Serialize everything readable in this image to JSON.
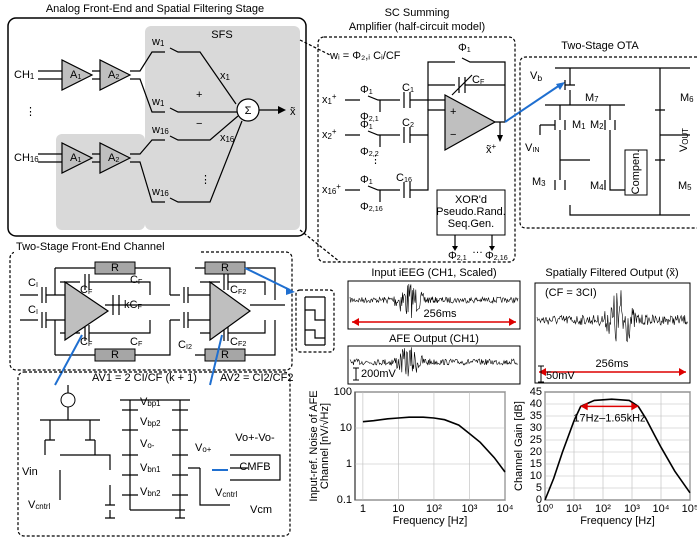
{
  "title": "Analog Front-End and Spatial Filtering Stage",
  "sfs": {
    "title": "SFS",
    "channels": [
      {
        "t": "CH",
        "sub": "1"
      },
      {
        "t": "CH",
        "sub": "16"
      }
    ],
    "amps": [
      {
        "t": "A",
        "sub": "1"
      },
      {
        "t": "A",
        "sub": "2"
      },
      {
        "t": "A",
        "sub": "1"
      },
      {
        "t": "A",
        "sub": "2"
      }
    ],
    "weights": [
      {
        "t": "w",
        "sub": "1"
      },
      {
        "t": "w",
        "sub": "1"
      },
      {
        "t": "w",
        "sub": "16"
      },
      {
        "t": "w",
        "sub": "16"
      }
    ],
    "inputs": [
      {
        "t": "x",
        "sub": "1"
      },
      {
        "t": "x",
        "sub": "16"
      }
    ],
    "sum": "Σ",
    "output": "x̃"
  },
  "sc_amp": {
    "title": [
      "SC Summing",
      "Amplifier (half-circuit model)"
    ],
    "formula": "wᵢ = Φ₂,ᵢ Cᵢ/CF",
    "phi1": [
      {
        "t": "Φ",
        "sub": "1"
      },
      {
        "t": "Φ",
        "sub": "1"
      },
      {
        "t": "Φ",
        "sub": "1"
      },
      {
        "t": "Φ",
        "sub": "1"
      }
    ],
    "cf": {
      "t": "C",
      "sub": "F"
    },
    "caps": [
      {
        "t": "C",
        "sub": "1"
      },
      {
        "t": "C",
        "sub": "2"
      },
      {
        "t": "C",
        "sub": "16"
      }
    ],
    "phi2": [
      {
        "t": "Φ",
        "sub": "2,1"
      },
      {
        "t": "Φ",
        "sub": "2,2"
      },
      {
        "t": "Φ",
        "sub": "2,16"
      }
    ],
    "inputs": [
      {
        "t": "x",
        "sub": "1",
        "sup": "+"
      },
      {
        "t": "x",
        "sub": "2",
        "sup": "+"
      },
      {
        "t": "x",
        "sub": "16",
        "sup": "+"
      }
    ],
    "output": {
      "t": "x̃",
      "sup": "+"
    },
    "prng": [
      "XOR'd",
      "Pseudo.Rand.",
      "Seq.Gen."
    ],
    "prng_out": [
      {
        "t": "Φ",
        "sub": "2,1"
      },
      {
        "t": "Φ",
        "sub": "2,16"
      }
    ]
  },
  "ota": {
    "title": "Two-Stage OTA",
    "vb": {
      "t": "V",
      "sub": "b"
    },
    "transistors": [
      {
        "t": "M",
        "sub": "7"
      },
      {
        "t": "M",
        "sub": "6"
      },
      {
        "t": "M",
        "sub": "1"
      },
      {
        "t": "M",
        "sub": "2"
      },
      {
        "t": "M",
        "sub": "3"
      },
      {
        "t": "M",
        "sub": "4"
      },
      {
        "t": "M",
        "sub": "5"
      }
    ],
    "vout": {
      "t": "V",
      "sub": "OUT"
    },
    "vin": {
      "t": "V",
      "sub": "IN"
    },
    "compen": "Compen."
  },
  "front_end": {
    "title": "Two-Stage Front-End Channel",
    "resistors": [
      "R",
      "R",
      "R",
      "R"
    ],
    "ci": [
      {
        "t": "C",
        "sub": "I"
      },
      {
        "t": "C",
        "sub": "I"
      }
    ],
    "cf": [
      {
        "t": "C",
        "sub": "F"
      },
      {
        "t": "C",
        "sub": "F"
      },
      {
        "t": "C",
        "sub": "F"
      },
      {
        "t": "C",
        "sub": "F"
      }
    ],
    "kcf": {
      "t": "kC",
      "sub": "F"
    },
    "ci2": [
      {
        "t": "C",
        "sub": "I2"
      },
      {
        "t": "C",
        "sub": "I2"
      }
    ],
    "cf2": [
      {
        "t": "C",
        "sub": "F2"
      },
      {
        "t": "C",
        "sub": "F2"
      }
    ],
    "av1": "AV1 = 2 CI/CF (k + 1)",
    "av2": "AV2 = CI2/CF2"
  },
  "bias": {
    "vbp1": {
      "t": "V",
      "sub": "bp1"
    },
    "vbp2": {
      "t": "V",
      "sub": "bp2"
    },
    "vom": {
      "t": "V",
      "sub": "o-"
    },
    "vop": {
      "t": "V",
      "sub": "o+"
    },
    "vbn1": {
      "t": "V",
      "sub": "bn1"
    },
    "vbn2": {
      "t": "V",
      "sub": "bn2"
    },
    "vin": "Vin",
    "vcntrl": [
      {
        "t": "V",
        "sub": "cntrl"
      },
      {
        "t": "V",
        "sub": "cntrl"
      }
    ],
    "vcm": "Vcm",
    "cmfb": "CMFB",
    "cmfb_in": "Vo+-Vo-"
  },
  "waveforms": {
    "ieeg_title": "Input iEEG (CH1, Scaled)",
    "ieeg_span": "256ms",
    "afe_title": "AFE Output (CH1)",
    "afe_scale": "200mV",
    "sf_title": "Spatially Filtered Output (x̃)",
    "sf_note": "(CF = 3CI)",
    "sf_span": "256ms",
    "sf_scale": "50mV"
  },
  "chart_data": [
    {
      "type": "line",
      "xlabel": "Frequency [Hz]",
      "ylabel": [
        "Input-ref. Noise of AFE",
        "Channel [nV/√Hz]"
      ],
      "xlog": true,
      "ylog": true,
      "grid": true,
      "xlim": [
        0.6,
        10000
      ],
      "ylim": [
        0.1,
        100
      ],
      "xticks": [
        1,
        10,
        {
          "value": 100,
          "label": "10²"
        },
        {
          "value": 1000,
          "label": "10³"
        },
        {
          "value": 10000,
          "label": "10⁴"
        }
      ],
      "yticks": [
        0.1,
        1,
        10,
        100
      ],
      "series": [
        {
          "color": "#000000",
          "x": [
            1,
            2,
            5,
            10,
            20,
            50,
            100,
            200,
            500,
            1000,
            2000,
            5000,
            10000
          ],
          "values": [
            15,
            16,
            18,
            19,
            20,
            20,
            19,
            17,
            12,
            7,
            4,
            1.5,
            0.6
          ]
        }
      ]
    },
    {
      "type": "line",
      "xlabel": "Frequency [Hz]",
      "ylabel": [
        "Channel Gain [dB]"
      ],
      "xlog": true,
      "ylog": false,
      "grid": true,
      "xlim": [
        1,
        100000
      ],
      "ylim": [
        0,
        45
      ],
      "xticks": [
        {
          "value": 1,
          "label": "10⁰"
        },
        {
          "value": 10,
          "label": "10¹"
        },
        {
          "value": 100,
          "label": "10²"
        },
        {
          "value": 1000,
          "label": "10³"
        },
        {
          "value": 10000,
          "label": "10⁴"
        },
        {
          "value": 100000,
          "label": "10⁵"
        }
      ],
      "yticks": [
        0,
        5,
        10,
        15,
        20,
        25,
        30,
        35,
        40,
        45
      ],
      "annotation": "17Hz–1.65kHz",
      "band": [
        17,
        1650
      ],
      "band_level": 39,
      "series": [
        {
          "color": "#000000",
          "x": [
            1,
            2,
            4,
            10,
            17,
            50,
            200,
            800,
            1650,
            3000,
            6000,
            10000,
            30000,
            100000
          ],
          "values": [
            0,
            9,
            20,
            33,
            39,
            41.5,
            42,
            41.5,
            39,
            34,
            27,
            22,
            12,
            3
          ]
        }
      ]
    }
  ]
}
